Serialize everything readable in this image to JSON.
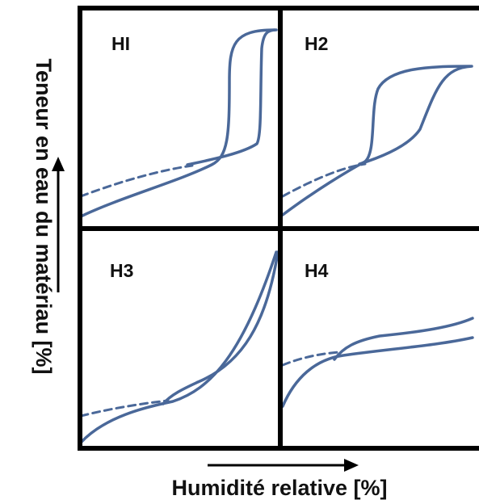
{
  "title": "",
  "x_axis_label": "Humidité relative [%]",
  "y_axis_label": "Teneur en eau du matériau [%]",
  "panels": [
    {
      "id": "h1",
      "label": "HI"
    },
    {
      "id": "h2",
      "label": "H2"
    },
    {
      "id": "h3",
      "label": "H3"
    },
    {
      "id": "h4",
      "label": "H4"
    }
  ],
  "colors": {
    "curve": "#4a6899",
    "frame": "#000000",
    "text": "#111111"
  }
}
